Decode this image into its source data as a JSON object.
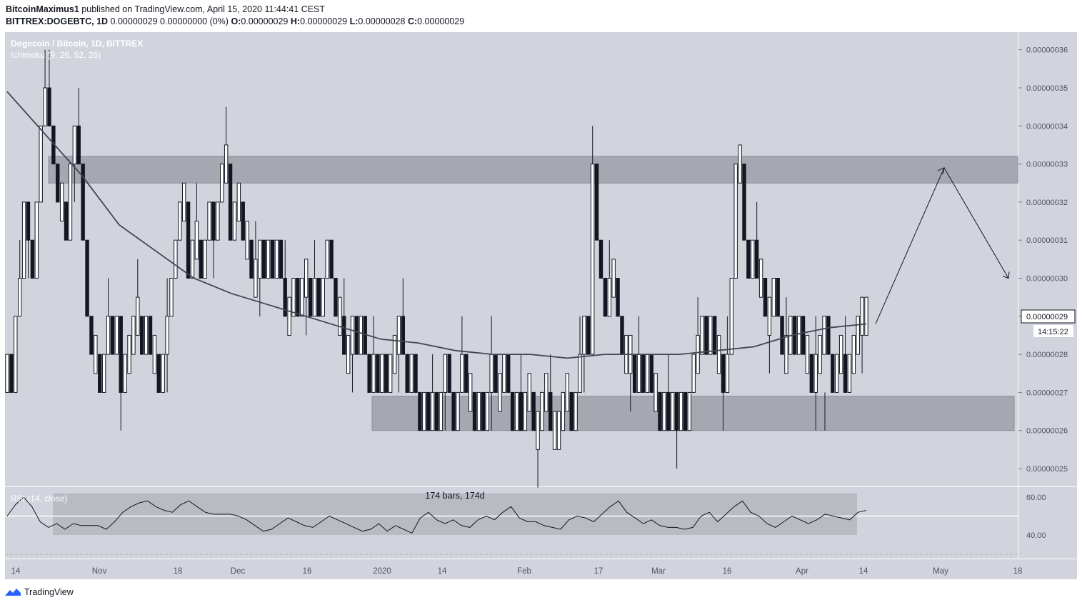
{
  "header": {
    "author": "BitcoinMaximus1",
    "published": "published on TradingView.com, April 15, 2020 11:44:41 CEST",
    "symbol": "BITTREX:DOGEBTC, 1D",
    "change": "0.00000029 0.00000000 (0%)",
    "o_label": "O:",
    "o": "0.00000029",
    "h_label": "H:",
    "h": "0.00000029",
    "l_label": "L:",
    "l": "0.00000028",
    "c_label": "C:",
    "c": "0.00000029"
  },
  "legend": {
    "title": "Dogecoin / Bitcoin, 1D, BITTREX",
    "indicator": "Ichimoku (9, 26, 52, 26)",
    "rsi": "RSI (14, close)"
  },
  "measure_label": "174 bars, 174d",
  "price_tag": "0.00000029",
  "countdown": "14:15:22",
  "footer": {
    "brand": "TradingView"
  },
  "colors": {
    "bg": "#d1d4dc",
    "zone": "#a5a8b0",
    "line": "#131722",
    "axis_text": "#787b86"
  },
  "chart_data": [
    {
      "type": "candlestick",
      "title": "Dogecoin / Bitcoin, 1D, BITTREX",
      "y_ticks": [
        "0.00000025",
        "0.00000026",
        "0.00000027",
        "0.00000028",
        "0.00000029",
        "0.00000030",
        "0.00000031",
        "0.00000032",
        "0.00000033",
        "0.00000034",
        "0.00000035",
        "0.00000036"
      ],
      "x_ticks": [
        "14",
        "Nov",
        "18",
        "Dec",
        "16",
        "2020",
        "14",
        "Feb",
        "17",
        "Mar",
        "16",
        "Apr",
        "14",
        "May",
        "18"
      ],
      "ylim": [
        2.47e-07,
        3.645e-07
      ],
      "resistance_zone": [
        3.25e-07,
        3.32e-07
      ],
      "support_zone": [
        2.6e-07,
        2.69e-07
      ],
      "moving_average": [
        3.49e-07,
        3.38e-07,
        3.27e-07,
        3.14e-07,
        3.07e-07,
        3e-07,
        2.96e-07,
        2.93e-07,
        2.9e-07,
        2.87e-07,
        2.84e-07,
        2.83e-07,
        2.81e-07,
        2.8e-07,
        2.8e-07,
        2.79e-07,
        2.8e-07,
        2.8e-07,
        2.8e-07,
        2.81e-07,
        2.82e-07,
        2.85e-07,
        2.87e-07,
        2.88e-07
      ],
      "projection": [
        2.88e-07,
        3.29e-07,
        3e-07
      ],
      "candles_desc": "daily OHLC, approx. Oct 2019 – Apr 15 2020",
      "last": {
        "open": 2.9e-07,
        "high": 2.9e-07,
        "low": 2.8e-07,
        "close": 2.9e-07
      }
    },
    {
      "type": "line",
      "title": "RSI (14, close)",
      "y_ticks": [
        "40.00",
        "60.00"
      ],
      "ylim": [
        30,
        68
      ],
      "midline": 50,
      "band": [
        40,
        62
      ],
      "values": [
        50,
        56,
        60,
        55,
        47,
        44,
        46,
        43,
        46,
        45,
        45,
        45,
        43,
        47,
        52,
        55,
        57,
        58,
        55,
        53,
        52,
        56,
        58,
        55,
        52,
        51,
        51,
        51,
        50,
        48,
        45,
        42,
        43,
        46,
        49,
        47,
        45,
        44,
        47,
        50,
        48,
        46,
        44,
        42,
        43,
        46,
        42,
        45,
        43,
        41,
        49,
        52,
        48,
        46,
        48,
        45,
        44,
        48,
        50,
        48,
        52,
        55,
        49,
        47,
        47,
        45,
        44,
        43,
        48,
        50,
        49,
        47,
        51,
        55,
        58,
        52,
        49,
        46,
        48,
        45,
        44,
        44,
        43,
        44,
        50,
        52,
        47,
        51,
        55,
        58,
        52,
        50,
        46,
        44,
        47,
        50,
        48,
        46,
        48,
        51,
        50,
        49,
        48,
        52,
        53
      ]
    }
  ]
}
